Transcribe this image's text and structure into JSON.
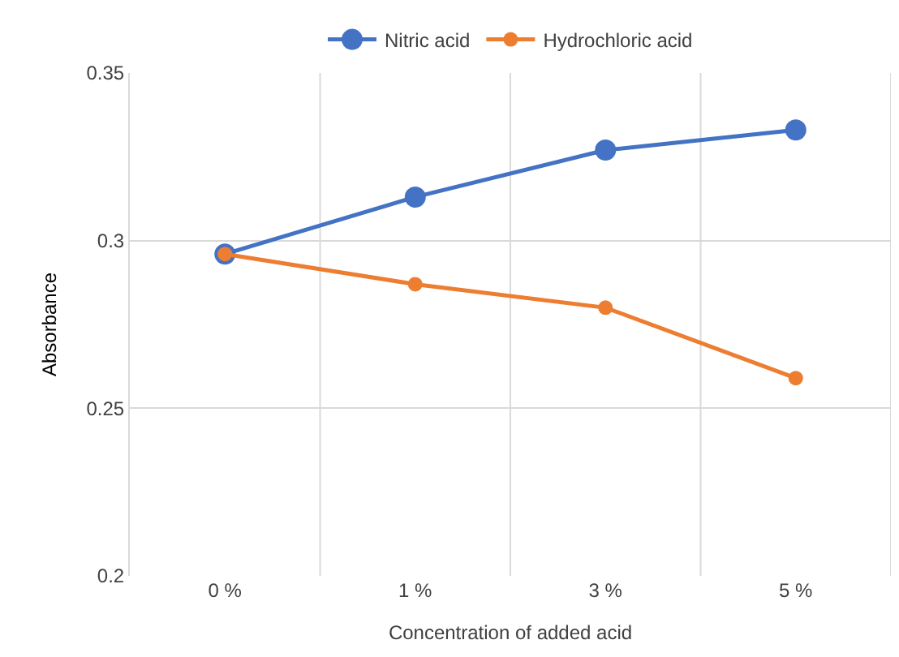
{
  "chart_data": {
    "type": "line",
    "xlabel": "Concentration of added acid",
    "ylabel": "Absorbance",
    "categories": [
      "0 %",
      "1 %",
      "3 %",
      "5 %"
    ],
    "series": [
      {
        "name": "Nitric acid",
        "color": "#4472c4",
        "values": [
          0.296,
          0.313,
          0.327,
          0.333
        ]
      },
      {
        "name": "Hydrochloric acid",
        "color": "#ed7d31",
        "values": [
          0.296,
          0.287,
          0.28,
          0.259
        ]
      }
    ],
    "ylim": [
      0.2,
      0.35
    ],
    "yticks": [
      0.2,
      0.25,
      0.3,
      0.35
    ],
    "grid": true,
    "legend": "top",
    "marker": "circle",
    "line_style": "solid"
  }
}
